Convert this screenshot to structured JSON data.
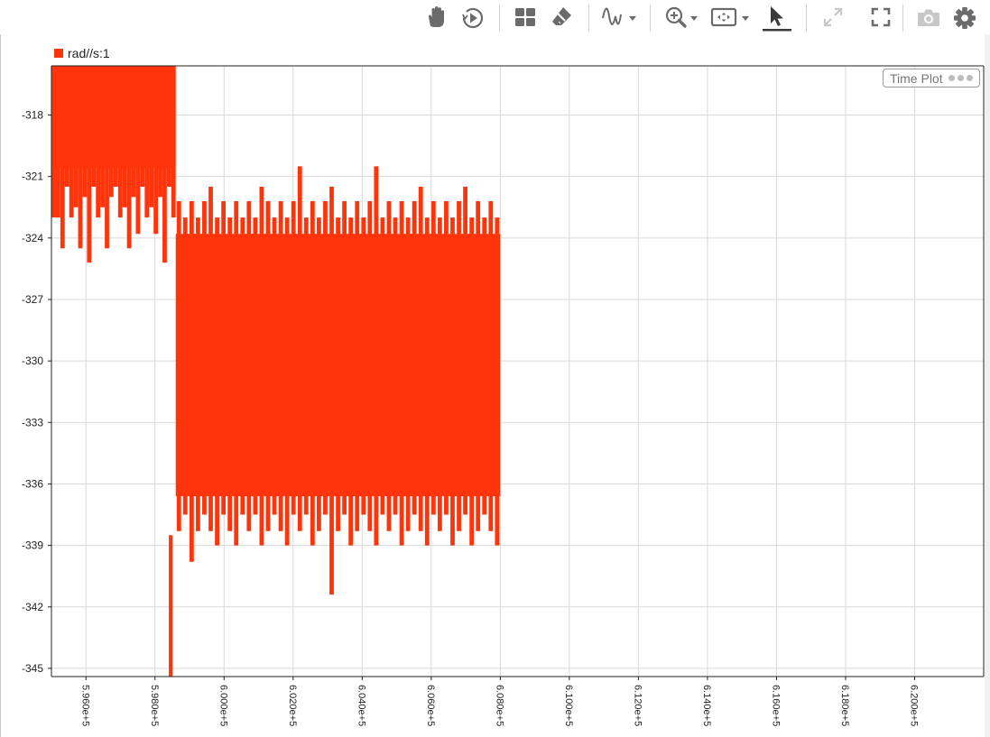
{
  "toolbar": {
    "buttons": [
      {
        "icon": "pan-hand-icon",
        "enabled": true
      },
      {
        "icon": "play-circle-icon",
        "enabled": true
      },
      {
        "icon": "layout-grid-icon",
        "enabled": true
      },
      {
        "icon": "eraser-icon",
        "enabled": true
      },
      {
        "icon": "signal-wave-icon",
        "enabled": true,
        "dropdown": true
      },
      {
        "icon": "zoom-in-icon",
        "enabled": true,
        "dropdown": true
      },
      {
        "icon": "fit-to-view-icon",
        "enabled": true,
        "dropdown": true
      },
      {
        "icon": "cursor-select-icon",
        "enabled": true,
        "active": true
      },
      {
        "icon": "expand-arrows-icon",
        "enabled": false
      },
      {
        "icon": "fullscreen-icon",
        "enabled": true
      },
      {
        "icon": "camera-icon",
        "enabled": false
      },
      {
        "icon": "gear-icon",
        "enabled": true
      }
    ]
  },
  "legend": {
    "label": "rad//s:1"
  },
  "badge": {
    "label": "Time Plot"
  },
  "colors": {
    "series": "#ff340b",
    "grid": "#d9d9d9",
    "axis": "#222222",
    "icon": "#6b6b6b",
    "icon_disabled": "#c8c8c8"
  },
  "chart_data": {
    "type": "line",
    "title": "",
    "xlabel": "",
    "ylabel": "",
    "grid": true,
    "legend": "top-left",
    "xlim": [
      595000,
      622000
    ],
    "ylim": [
      -345.4,
      -315.6
    ],
    "x_ticks": [
      596000,
      598000,
      600000,
      602000,
      604000,
      606000,
      608000,
      610000,
      612000,
      614000,
      616000,
      618000,
      620000
    ],
    "x_tick_labels": [
      "5.960e+5",
      "5.980e+5",
      "6.000e+5",
      "6.020e+5",
      "6.040e+5",
      "6.060e+5",
      "6.080e+5",
      "6.100e+5",
      "6.120e+5",
      "6.140e+5",
      "6.160e+5",
      "6.180e+5",
      "6.200e+5"
    ],
    "y_ticks": [
      -318,
      -321,
      -324,
      -327,
      -330,
      -333,
      -336,
      -339,
      -342,
      -345
    ],
    "y_tick_labels": [
      "-318",
      "-321",
      "-324",
      "-327",
      "-330",
      "-333",
      "-336",
      "-339",
      "-342",
      "-345"
    ],
    "series": [
      {
        "name": "rad//s:1",
        "segments": [
          {
            "x_start": 595000,
            "x_end": 598600,
            "upper": -315.6,
            "lower": -320.6,
            "upper_spikes": [],
            "lower_spikes": [
              -323,
              -323,
              -324.5,
              -321.5,
              -323,
              -322.5,
              -324.5,
              -322,
              -325.2,
              -321.5,
              -323,
              -322.5,
              -324.5,
              -322,
              -321.5,
              -323,
              -322.5,
              -324.5,
              -322,
              -323.8,
              -321.5,
              -323,
              -322.5,
              -323.8,
              -322,
              -325.2,
              -321.5,
              -323
            ]
          },
          {
            "x_start": 598600,
            "x_end": 608000,
            "upper": -323.8,
            "lower": -336.6,
            "upper_spikes": [
              -322.2,
              -323,
              -322.2,
              -323,
              -322.2,
              -321.5,
              -323,
              -322.2,
              -323,
              -322.2,
              -323,
              -322.2,
              -323,
              -321.5,
              -322.2,
              -323,
              -322.2,
              -323,
              -322.2,
              -320.5,
              -323,
              -322.2,
              -323,
              -322.2,
              -321.5,
              -323,
              -322.2,
              -323,
              -322.2,
              -323,
              -322.2,
              -320.5,
              -323,
              -322.2,
              -323,
              -322.2,
              -323,
              -322.2,
              -321.5,
              -323,
              -322.2,
              -323,
              -322.2,
              -323,
              -322.2,
              -321.5,
              -323,
              -322.2,
              -323,
              -322.2,
              -323
            ],
            "lower_spikes": [
              -338.3,
              -337.5,
              -339.8,
              -338.3,
              -337.5,
              -338.3,
              -339,
              -337.5,
              -338.3,
              -339,
              -337.5,
              -338.3,
              -337.5,
              -339,
              -338.3,
              -337.5,
              -338.3,
              -339,
              -337.5,
              -338.3,
              -337.5,
              -339,
              -338.3,
              -337.5,
              -341.4,
              -338.3,
              -337.5,
              -339,
              -338.3,
              -337.5,
              -338.3,
              -339,
              -337.5,
              -338.3,
              -337.5,
              -339,
              -338.3,
              -337.5,
              -338.3,
              -339,
              -337.5,
              -338.3,
              -337.5,
              -339,
              -338.3,
              -337.5,
              -339,
              -338.3,
              -337.5,
              -338.3,
              -339
            ],
            "deep_spike": {
              "x": 598400,
              "y": -345.4
            }
          }
        ]
      }
    ]
  }
}
